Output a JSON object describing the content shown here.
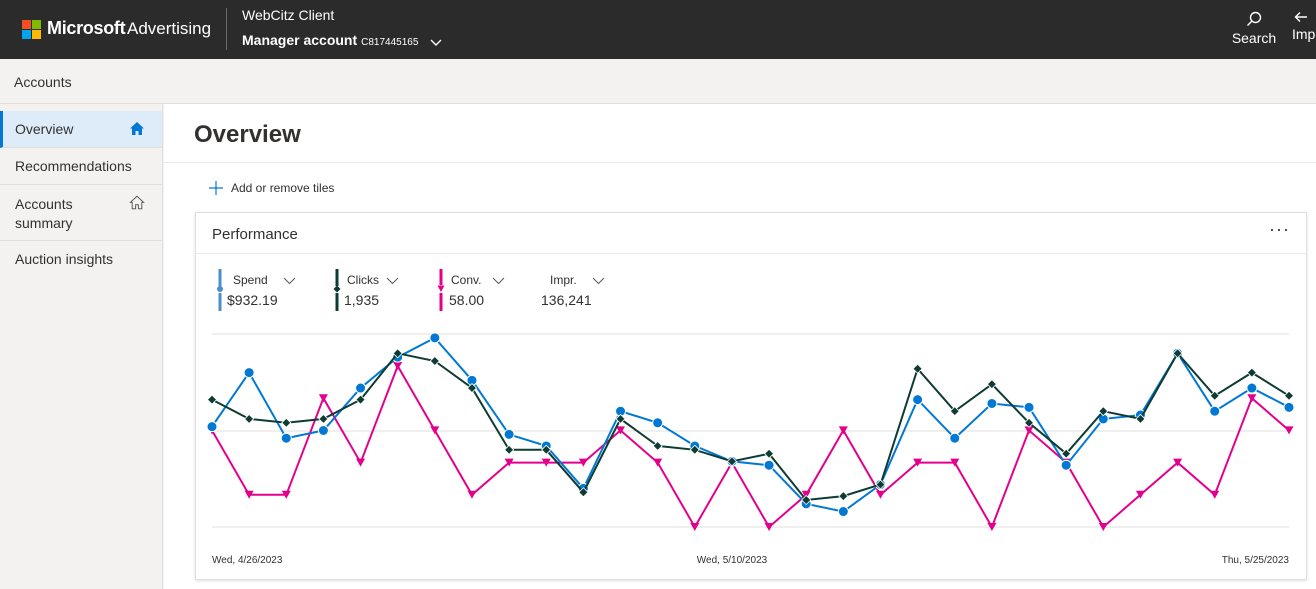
{
  "header": {
    "brand": "Microsoft",
    "product": "Advertising",
    "client_name": "WebCitz Client",
    "account_label": "Manager account",
    "account_id": "C817445165",
    "search_label": "Search",
    "imp_label": "Imp",
    "logo_colors": [
      "#f25022",
      "#7fba00",
      "#00a4ef",
      "#ffb900"
    ]
  },
  "subheader": {
    "title": "Accounts"
  },
  "sidebar": {
    "items": [
      {
        "label": "Overview",
        "icon": "home-icon",
        "active": true
      },
      {
        "label": "Recommendations"
      },
      {
        "label": "Accounts summary",
        "icon": "home-outline-icon"
      },
      {
        "label": "Auction insights"
      }
    ]
  },
  "main": {
    "page_title": "Overview",
    "add_tiles_label": "Add or remove tiles"
  },
  "card": {
    "title": "Performance",
    "more_label": "···",
    "metrics": [
      {
        "name": "Spend",
        "value": "$932.19",
        "color": "#4a8fc8"
      },
      {
        "name": "Clicks",
        "value": "1,935",
        "color": "#0e3b32"
      },
      {
        "name": "Conv.",
        "value": "58.00",
        "color": "#e3008c"
      },
      {
        "name": "Impr.",
        "value": "136,241",
        "color": ""
      }
    ]
  },
  "chart_data": {
    "type": "line",
    "x_tick_labels": [
      "Wed, 4/26/2023",
      "Wed, 5/10/2023",
      "Thu, 5/25/2023"
    ],
    "x_start": "2023-04-26",
    "x_end": "2023-05-25",
    "grid": true,
    "series": [
      {
        "name": "Spend",
        "color": "#0078d4",
        "marker": "circle",
        "values": [
          0.26,
          0.4,
          0.23,
          0.25,
          0.36,
          0.44,
          0.49,
          0.38,
          0.24,
          0.21,
          0.1,
          0.3,
          0.27,
          0.21,
          0.17,
          0.16,
          0.06,
          0.04,
          0.11,
          0.33,
          0.23,
          0.32,
          0.31,
          0.16,
          0.28,
          0.29,
          0.45,
          0.3,
          0.36,
          0.31
        ]
      },
      {
        "name": "Clicks",
        "color": "#0e3b32",
        "marker": "diamond",
        "values": [
          0.33,
          0.28,
          0.27,
          0.28,
          0.33,
          0.45,
          0.43,
          0.36,
          0.2,
          0.2,
          0.09,
          0.28,
          0.21,
          0.2,
          0.17,
          0.19,
          0.07,
          0.08,
          0.11,
          0.41,
          0.3,
          0.37,
          0.27,
          0.19,
          0.3,
          0.28,
          0.45,
          0.34,
          0.4,
          0.34
        ]
      },
      {
        "name": "Conv.",
        "color": "#e3008c",
        "marker": "triangle",
        "values": [
          3,
          1,
          1,
          4,
          2,
          5,
          3,
          1,
          2,
          2,
          2,
          3,
          2,
          0,
          2,
          0,
          1,
          3,
          1,
          2,
          2,
          0,
          3,
          2,
          0,
          1,
          2,
          1,
          4,
          3
        ]
      }
    ]
  }
}
